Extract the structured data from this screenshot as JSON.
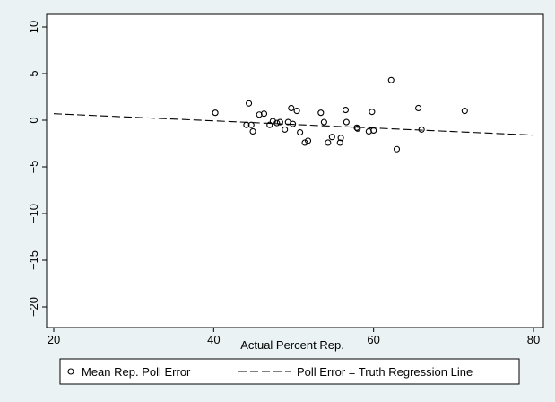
{
  "chart_data": {
    "type": "scatter",
    "title": "",
    "xlabel": "Actual Percent Rep.",
    "ylabel": "",
    "xlim": [
      20,
      80
    ],
    "ylim": [
      -21,
      10.5
    ],
    "x_ticks": [
      20,
      40,
      60,
      80
    ],
    "x_tick_labels": [
      "20",
      "40",
      "60",
      "80"
    ],
    "y_ticks": [
      10,
      5,
      0,
      -5,
      -10,
      -15,
      -20
    ],
    "y_tick_labels": [
      "10",
      "5",
      "0",
      "−5",
      "−10",
      "−15",
      "−20"
    ],
    "grid": false,
    "legend_position": "bottom",
    "series": [
      {
        "name": "Mean Rep. Poll Error",
        "kind": "scatter",
        "x": [
          40.2,
          44.1,
          44.4,
          44.7,
          44.9,
          45.7,
          46.3,
          47.0,
          47.4,
          47.9,
          48.3,
          48.9,
          49.3,
          49.7,
          49.9,
          50.4,
          50.8,
          51.4,
          51.8,
          53.4,
          53.8,
          54.3,
          54.8,
          55.8,
          55.9,
          56.5,
          56.6,
          57.9,
          58.0,
          59.4,
          59.8,
          60.0,
          62.2,
          62.9,
          65.6,
          66.0,
          71.4
        ],
        "y": [
          0.8,
          -0.5,
          1.8,
          -0.5,
          -1.2,
          0.6,
          0.7,
          -0.5,
          -0.1,
          -0.3,
          -0.2,
          -1.0,
          -0.2,
          1.3,
          -0.4,
          1.0,
          -1.3,
          -2.4,
          -2.2,
          0.8,
          -0.2,
          -2.4,
          -1.8,
          -2.4,
          -1.9,
          1.1,
          -0.2,
          -0.8,
          -0.9,
          -1.2,
          0.9,
          -1.1,
          4.3,
          -3.1,
          1.3,
          -1.0,
          1.0
        ]
      },
      {
        "name": "Poll Error = Truth Regression Line",
        "kind": "line",
        "x": [
          20,
          80
        ],
        "y": [
          0.7,
          -1.6
        ]
      }
    ],
    "colors": {
      "plot_background": "#ffffff",
      "page_background": "#eaf2f3",
      "ink": "#000000"
    }
  }
}
